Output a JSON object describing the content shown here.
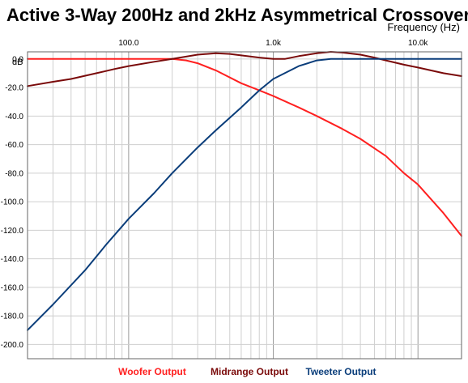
{
  "chart_data": {
    "type": "line",
    "title": "Active 3-Way 200Hz and 2kHz Asymmetrical Crossover",
    "xlabel": "Frequency  (Hz)",
    "ylabel": "dB",
    "xscale": "log",
    "xlim": [
      20,
      20000
    ],
    "ylim": [
      -210,
      5
    ],
    "x_ticks": [
      {
        "value": 100,
        "label": "100.0"
      },
      {
        "value": 1000,
        "label": "1.0k"
      },
      {
        "value": 10000,
        "label": "10.0k"
      }
    ],
    "y_ticks": [
      {
        "value": 0,
        "label": "0.0"
      },
      {
        "value": -20,
        "label": "-20.0"
      },
      {
        "value": -40,
        "label": "-40.0"
      },
      {
        "value": -60,
        "label": "-60.0"
      },
      {
        "value": -80,
        "label": "-80.0"
      },
      {
        "value": -100,
        "label": "-100.0"
      },
      {
        "value": -120,
        "label": "-120.0"
      },
      {
        "value": -140,
        "label": "-140.0"
      },
      {
        "value": -160,
        "label": "-160.0"
      },
      {
        "value": -180,
        "label": "-180.0"
      },
      {
        "value": -200,
        "label": "-200.0"
      }
    ],
    "grid": true,
    "legend_position": "bottom",
    "series": [
      {
        "name": "Woofer Output",
        "color": "#ff2020",
        "points": [
          [
            20,
            0
          ],
          [
            100,
            0
          ],
          [
            150,
            0
          ],
          [
            200,
            0
          ],
          [
            250,
            -1
          ],
          [
            300,
            -3
          ],
          [
            400,
            -8
          ],
          [
            600,
            -17
          ],
          [
            800,
            -22
          ],
          [
            1000,
            -26
          ],
          [
            1500,
            -34
          ],
          [
            2000,
            -40
          ],
          [
            3000,
            -49
          ],
          [
            4000,
            -56
          ],
          [
            6000,
            -68
          ],
          [
            8000,
            -80
          ],
          [
            10000,
            -88
          ],
          [
            15000,
            -108
          ],
          [
            20000,
            -124
          ]
        ]
      },
      {
        "name": "Midrange Output",
        "color": "#7a0a0a",
        "points": [
          [
            20,
            -19
          ],
          [
            30,
            -16
          ],
          [
            40,
            -14
          ],
          [
            60,
            -10
          ],
          [
            80,
            -7
          ],
          [
            100,
            -5
          ],
          [
            150,
            -2
          ],
          [
            200,
            0
          ],
          [
            300,
            3
          ],
          [
            400,
            4
          ],
          [
            500,
            3.5
          ],
          [
            600,
            2.5
          ],
          [
            800,
            1
          ],
          [
            1000,
            0
          ],
          [
            1200,
            0
          ],
          [
            1500,
            2
          ],
          [
            2000,
            4
          ],
          [
            2500,
            5
          ],
          [
            3000,
            4.5
          ],
          [
            4000,
            3
          ],
          [
            5000,
            1
          ],
          [
            6000,
            -1
          ],
          [
            8000,
            -4
          ],
          [
            10000,
            -6
          ],
          [
            15000,
            -10
          ],
          [
            20000,
            -12
          ]
        ]
      },
      {
        "name": "Tweeter Output",
        "color": "#0a3d7a",
        "points": [
          [
            20,
            -190
          ],
          [
            30,
            -172
          ],
          [
            50,
            -148
          ],
          [
            70,
            -130
          ],
          [
            100,
            -112
          ],
          [
            150,
            -94
          ],
          [
            200,
            -80
          ],
          [
            300,
            -62
          ],
          [
            400,
            -50
          ],
          [
            600,
            -34
          ],
          [
            800,
            -22
          ],
          [
            1000,
            -14
          ],
          [
            1500,
            -5
          ],
          [
            2000,
            -1
          ],
          [
            2500,
            0
          ],
          [
            5000,
            0
          ],
          [
            10000,
            0
          ],
          [
            20000,
            0
          ]
        ]
      }
    ]
  }
}
